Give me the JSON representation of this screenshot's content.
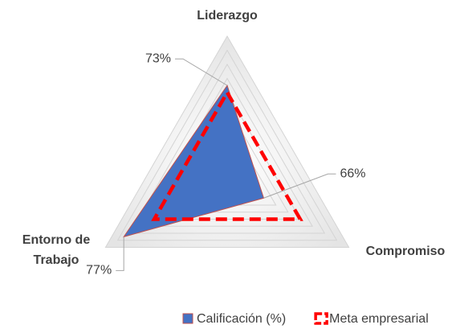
{
  "chart_data": {
    "type": "radar",
    "categories": [
      "Liderazgo",
      "Compromiso",
      "Entorno de Trabajo"
    ],
    "series": [
      {
        "name": "Calificación (%)",
        "color": "#4472c4",
        "values": [
          73,
          66,
          77
        ],
        "value_labels": [
          "73%",
          "66%",
          "77%"
        ]
      },
      {
        "name": "Meta empresarial",
        "color": "#ff0000",
        "values": [
          72,
          72,
          72
        ],
        "dashed": true
      }
    ],
    "ylim": [
      60,
      80
    ],
    "yticks": [
      60,
      62,
      64,
      66,
      68,
      70,
      72,
      74,
      76,
      78,
      80
    ],
    "grid": true,
    "legend": "bottom"
  }
}
